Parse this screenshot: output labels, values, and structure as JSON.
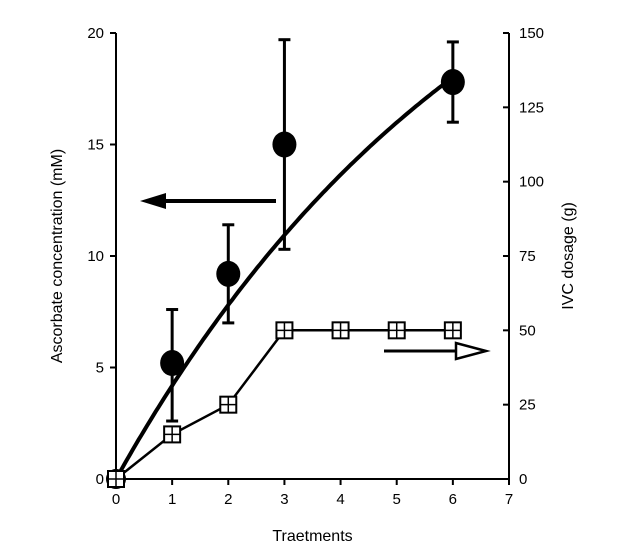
{
  "chart_data": {
    "type": "line",
    "title": "",
    "xlabel": "Traetments",
    "ylabel_left": "Ascorbate concentration (mM)",
    "ylabel_right": "IVC dosage (g)",
    "xlim": [
      0,
      7
    ],
    "ylim_left": [
      0,
      20
    ],
    "ylim_right": [
      0,
      150
    ],
    "x_ticks": [
      "0",
      "1",
      "2",
      "3",
      "4",
      "5",
      "6",
      "7"
    ],
    "y_left_ticks": [
      "0",
      "5",
      "10",
      "15",
      "20"
    ],
    "y_right_ticks": [
      "0",
      "25",
      "50",
      "75",
      "100",
      "125",
      "150"
    ],
    "grid": false,
    "legend": "none",
    "series": [
      {
        "axis": "left",
        "marker": "filled-circle",
        "color": "#000000",
        "x": [
          0,
          1,
          2,
          3,
          6
        ],
        "y": [
          0,
          5.2,
          9.2,
          15.0,
          17.8
        ],
        "error_low": [
          0,
          2.6,
          7.0,
          10.3,
          16.0
        ],
        "error_high": [
          0,
          7.6,
          11.4,
          19.7,
          19.6
        ],
        "fit": "saturating-curve"
      },
      {
        "axis": "right",
        "marker": "open-square-cross",
        "color": "#000000",
        "x": [
          0,
          1,
          2,
          3,
          4,
          5,
          6
        ],
        "y": [
          0,
          15,
          25,
          50,
          50,
          50,
          50
        ]
      }
    ],
    "annotations": [
      {
        "type": "arrow",
        "direction": "left",
        "meaning": "circles use left axis"
      },
      {
        "type": "arrow",
        "direction": "right",
        "meaning": "squares use right axis"
      }
    ]
  }
}
